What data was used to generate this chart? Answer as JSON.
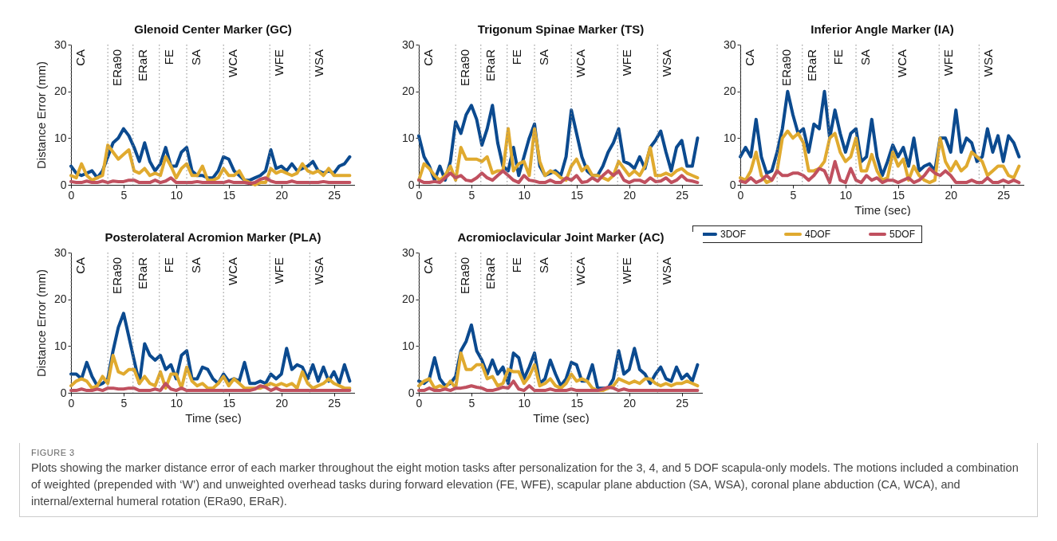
{
  "chart_data": [
    {
      "type": "line",
      "title": "Glenoid Center Marker (GC)",
      "ylabel": "Distance Error (mm)",
      "legend": "bottom right",
      "xlim": [
        0,
        27
      ],
      "xticks": [
        0,
        5,
        10,
        15,
        20,
        25
      ],
      "ylim": [
        0,
        30
      ],
      "yticks": [
        0,
        10,
        20,
        30
      ],
      "x": [
        0,
        0.5,
        1,
        1.5,
        2,
        2.5,
        3,
        3.5,
        4,
        4.5,
        5,
        5.5,
        6,
        6.5,
        7,
        7.5,
        8,
        8.5,
        9,
        9.5,
        10,
        10.5,
        11,
        11.5,
        12,
        12.5,
        13,
        13.5,
        14,
        14.5,
        15,
        15.5,
        16,
        16.5,
        17,
        17.5,
        18,
        18.5,
        19,
        19.5,
        20,
        20.5,
        21,
        21.5,
        22,
        22.5,
        23,
        23.5,
        24,
        24.5,
        25,
        25.5,
        26,
        26.5
      ],
      "series": [
        {
          "name": "3DOF",
          "color": "#0b4a8f",
          "values": [
            4,
            2.5,
            2,
            2.5,
            3,
            1.5,
            3,
            6,
            9,
            10,
            12,
            10.5,
            8,
            5,
            9,
            5,
            3,
            4.5,
            8,
            4,
            4,
            7,
            8,
            3,
            2,
            2,
            1.5,
            1.5,
            3,
            6,
            5.5,
            3,
            2,
            1,
            1,
            1.5,
            2,
            3,
            7.5,
            3.5,
            4,
            3,
            4.5,
            3,
            3.5,
            4,
            5,
            3,
            2.5,
            3,
            2.5,
            4,
            4.5,
            6
          ]
        },
        {
          "name": "4DOF",
          "color": "#e0aa2f",
          "values": [
            2,
            1.5,
            4.5,
            2,
            1,
            1.5,
            2,
            8.5,
            7,
            5.5,
            6.5,
            7.5,
            3,
            2.5,
            3.5,
            2,
            2.5,
            2,
            6,
            4,
            1.5,
            3.5,
            4.5,
            2,
            2,
            4,
            1,
            1,
            1.5,
            3.5,
            2,
            2,
            3,
            1,
            0.5,
            0,
            0.5,
            0.5,
            3.5,
            2.5,
            3,
            2.5,
            2,
            2.5,
            4.5,
            3,
            2.5,
            3,
            2,
            3.5,
            2,
            2,
            2,
            2
          ]
        },
        {
          "name": "5DOF",
          "color": "#c0505f",
          "values": [
            0.7,
            0.5,
            0.5,
            0.8,
            0.5,
            0.5,
            0.8,
            0.5,
            0.8,
            0.7,
            0.7,
            1,
            1,
            0.5,
            0.5,
            0.5,
            1,
            0.5,
            0.8,
            1.5,
            0.5,
            0.5,
            0.5,
            0.5,
            0.7,
            0.5,
            0.5,
            0.5,
            0.5,
            0.5,
            0.8,
            0.5,
            0.5,
            0.5,
            0.3,
            0.5,
            1.2,
            1.5,
            0.8,
            0.5,
            0.5,
            0.5,
            0.8,
            0.5,
            0.5,
            0.5,
            0.5,
            0.5,
            0.7,
            0.5,
            0.5,
            0.5,
            0.5,
            0.5
          ]
        }
      ],
      "ref_lines": [
        {
          "axis": "x",
          "value": 0,
          "label": "CA",
          "color": "#888888",
          "line_style": "dotted"
        },
        {
          "axis": "x",
          "value": 3.5,
          "label": "ERa90",
          "color": "#888888",
          "line_style": "dotted"
        },
        {
          "axis": "x",
          "value": 5.9,
          "label": "ERaR",
          "color": "#888888",
          "line_style": "dotted"
        },
        {
          "axis": "x",
          "value": 8.4,
          "label": "FE",
          "color": "#888888",
          "line_style": "dotted"
        },
        {
          "axis": "x",
          "value": 11,
          "label": "SA",
          "color": "#888888",
          "line_style": "dotted"
        },
        {
          "axis": "x",
          "value": 14.5,
          "label": "WCA",
          "color": "#888888",
          "line_style": "dotted"
        },
        {
          "axis": "x",
          "value": 18.9,
          "label": "WFE",
          "color": "#888888",
          "line_style": "dotted"
        },
        {
          "axis": "x",
          "value": 22.7,
          "label": "WSA",
          "color": "#888888",
          "line_style": "dotted"
        }
      ]
    },
    {
      "type": "line",
      "title": "Trigonum Spinae Marker (TS)",
      "xlim": [
        0,
        27
      ],
      "xticks": [
        0,
        5,
        10,
        15,
        20,
        25
      ],
      "ylim": [
        0,
        30
      ],
      "yticks": [
        0,
        10,
        20,
        30
      ],
      "x": [
        0,
        0.5,
        1,
        1.5,
        2,
        2.5,
        3,
        3.5,
        4,
        4.5,
        5,
        5.5,
        6,
        6.5,
        7,
        7.5,
        8,
        8.5,
        9,
        9.5,
        10,
        10.5,
        11,
        11.5,
        12,
        12.5,
        13,
        13.5,
        14,
        14.5,
        15,
        15.5,
        16,
        16.5,
        17,
        17.5,
        18,
        18.5,
        19,
        19.5,
        20,
        20.5,
        21,
        21.5,
        22,
        22.5,
        23,
        23.5,
        24,
        24.5,
        25,
        25.5,
        26,
        26.5
      ],
      "series": [
        {
          "color": "#0b4a8f",
          "values": [
            10.5,
            6,
            4,
            1,
            4,
            1,
            5,
            13.5,
            11,
            15,
            17,
            14,
            8.5,
            12,
            17,
            9,
            4,
            3,
            8,
            2,
            6,
            10,
            13,
            4,
            2,
            2.5,
            3,
            2,
            6,
            16,
            11,
            6,
            3,
            2,
            2,
            4,
            7,
            9,
            12,
            5,
            4.5,
            3.5,
            6,
            3.5,
            8,
            9.5,
            11.5,
            7,
            3,
            8,
            9.5,
            4,
            4,
            10
          ]
        },
        {
          "color": "#e0aa2f",
          "values": [
            1,
            4.5,
            3.5,
            2,
            1,
            2,
            4,
            1,
            8,
            5.5,
            5.5,
            5.5,
            5,
            6,
            2.5,
            3,
            3,
            12,
            3,
            4.5,
            5,
            2,
            12,
            5,
            2,
            3,
            2.5,
            1.5,
            1,
            4,
            5.5,
            3,
            4,
            2,
            2,
            1.5,
            1,
            2,
            5,
            3.5,
            2,
            3,
            2,
            4,
            8,
            2,
            2,
            2.5,
            2,
            3,
            3.5,
            2.5,
            2,
            1.5
          ]
        },
        {
          "color": "#c0505f",
          "values": [
            1,
            0.5,
            0.5,
            0.7,
            0.5,
            1.5,
            2.5,
            1.5,
            2,
            1,
            0.8,
            1.5,
            2.5,
            1.5,
            1,
            2,
            3,
            2,
            1,
            0.5,
            2,
            1,
            0.8,
            0.5,
            0.5,
            1,
            0.5,
            0.5,
            1.5,
            1,
            2,
            0.5,
            0.7,
            1.5,
            0.8,
            2,
            3,
            2,
            3,
            1,
            0.5,
            1,
            1,
            0.5,
            1.5,
            0.7,
            0.8,
            1.5,
            0.5,
            1,
            2,
            1,
            0.8,
            0.5
          ]
        }
      ],
      "ref_lines": [
        {
          "axis": "x",
          "value": 0,
          "label": "CA",
          "color": "#888888",
          "line_style": "dotted"
        },
        {
          "axis": "x",
          "value": 3.5,
          "label": "ERa90",
          "color": "#888888",
          "line_style": "dotted"
        },
        {
          "axis": "x",
          "value": 5.9,
          "label": "ERaR",
          "color": "#888888",
          "line_style": "dotted"
        },
        {
          "axis": "x",
          "value": 8.4,
          "label": "FE",
          "color": "#888888",
          "line_style": "dotted"
        },
        {
          "axis": "x",
          "value": 11,
          "label": "SA",
          "color": "#888888",
          "line_style": "dotted"
        },
        {
          "axis": "x",
          "value": 14.5,
          "label": "WCA",
          "color": "#888888",
          "line_style": "dotted"
        },
        {
          "axis": "x",
          "value": 18.9,
          "label": "WFE",
          "color": "#888888",
          "line_style": "dotted"
        },
        {
          "axis": "x",
          "value": 22.7,
          "label": "WSA",
          "color": "#888888",
          "line_style": "dotted"
        }
      ]
    },
    {
      "type": "line",
      "title": "Inferior Angle Marker (IA)",
      "xlabel": "Time (sec)",
      "xlim": [
        0,
        27
      ],
      "xticks": [
        0,
        5,
        10,
        15,
        20,
        25
      ],
      "ylim": [
        0,
        30
      ],
      "yticks": [
        0,
        10,
        20,
        30
      ],
      "x": [
        0,
        0.5,
        1,
        1.5,
        2,
        2.5,
        3,
        3.5,
        4,
        4.5,
        5,
        5.5,
        6,
        6.5,
        7,
        7.5,
        8,
        8.5,
        9,
        9.5,
        10,
        10.5,
        11,
        11.5,
        12,
        12.5,
        13,
        13.5,
        14,
        14.5,
        15,
        15.5,
        16,
        16.5,
        17,
        17.5,
        18,
        18.5,
        19,
        19.5,
        20,
        20.5,
        21,
        21.5,
        22,
        22.5,
        23,
        23.5,
        24,
        24.5,
        25,
        25.5,
        26,
        26.5
      ],
      "series": [
        {
          "color": "#0b4a8f",
          "values": [
            6,
            8,
            6,
            14,
            6,
            2.5,
            3,
            7,
            12,
            20,
            15,
            11,
            12,
            7,
            13,
            12,
            20,
            10,
            16,
            11,
            7,
            11,
            12,
            5,
            6,
            14,
            6,
            2,
            5,
            8.5,
            6,
            8,
            4,
            10,
            3,
            4,
            4.5,
            3,
            10,
            10,
            7,
            16,
            7,
            10,
            9,
            5,
            6,
            12,
            7,
            10.5,
            5,
            10.5,
            9,
            6
          ]
        },
        {
          "color": "#e0aa2f",
          "values": [
            1.5,
            1,
            3,
            7,
            2,
            0.5,
            1,
            3,
            10,
            11.5,
            10,
            11,
            9,
            3,
            3,
            3.5,
            5,
            10,
            11,
            7,
            5,
            6,
            10,
            3,
            3,
            6.5,
            3,
            1,
            1.5,
            7,
            4,
            5.5,
            1,
            4,
            2,
            1,
            0.5,
            1,
            10,
            5,
            3,
            5,
            3,
            4,
            7,
            6,
            5,
            2,
            3,
            4,
            4,
            2,
            1.5,
            4
          ]
        },
        {
          "color": "#c0505f",
          "values": [
            0.8,
            0.5,
            1.5,
            0.5,
            1,
            2,
            1,
            3,
            2,
            2,
            2.5,
            2.5,
            2,
            1,
            2,
            3.5,
            3,
            0.5,
            5,
            1,
            0.5,
            3.5,
            1,
            0.5,
            2,
            1,
            1.5,
            0.5,
            1,
            1,
            0.5,
            1,
            1.5,
            0.5,
            1,
            2,
            3.5,
            2.5,
            2,
            3,
            2,
            0.5,
            0.5,
            0.5,
            1,
            0.5,
            0.5,
            1.5,
            0.5,
            0.5,
            1,
            0.5,
            1,
            0.5
          ]
        }
      ],
      "ref_lines": [
        {
          "axis": "x",
          "value": 0,
          "label": "CA",
          "color": "#888888",
          "line_style": "dotted"
        },
        {
          "axis": "x",
          "value": 3.5,
          "label": "ERa90",
          "color": "#888888",
          "line_style": "dotted"
        },
        {
          "axis": "x",
          "value": 5.9,
          "label": "ERaR",
          "color": "#888888",
          "line_style": "dotted"
        },
        {
          "axis": "x",
          "value": 8.4,
          "label": "FE",
          "color": "#888888",
          "line_style": "dotted"
        },
        {
          "axis": "x",
          "value": 11,
          "label": "SA",
          "color": "#888888",
          "line_style": "dotted"
        },
        {
          "axis": "x",
          "value": 14.5,
          "label": "WCA",
          "color": "#888888",
          "line_style": "dotted"
        },
        {
          "axis": "x",
          "value": 18.9,
          "label": "WFE",
          "color": "#888888",
          "line_style": "dotted"
        },
        {
          "axis": "x",
          "value": 22.7,
          "label": "WSA",
          "color": "#888888",
          "line_style": "dotted"
        }
      ]
    },
    {
      "type": "line",
      "title": "Posterolateral Acromion Marker (PLA)",
      "xlabel": "Time (sec)",
      "ylabel": "Distance Error (mm)",
      "xlim": [
        0,
        27
      ],
      "xticks": [
        0,
        5,
        10,
        15,
        20,
        25
      ],
      "ylim": [
        0,
        30
      ],
      "yticks": [
        0,
        10,
        20,
        30
      ],
      "x": [
        0,
        0.5,
        1,
        1.5,
        2,
        2.5,
        3,
        3.5,
        4,
        4.5,
        5,
        5.5,
        6,
        6.5,
        7,
        7.5,
        8,
        8.5,
        9,
        9.5,
        10,
        10.5,
        11,
        11.5,
        12,
        12.5,
        13,
        13.5,
        14,
        14.5,
        15,
        15.5,
        16,
        16.5,
        17,
        17.5,
        18,
        18.5,
        19,
        19.5,
        20,
        20.5,
        21,
        21.5,
        22,
        22.5,
        23,
        23.5,
        24,
        24.5,
        25,
        25.5,
        26,
        26.5
      ],
      "series": [
        {
          "color": "#0b4a8f",
          "values": [
            4,
            4,
            3,
            6.5,
            3.5,
            1.5,
            2,
            3,
            9,
            14,
            17,
            12,
            7,
            2,
            10.5,
            8,
            7,
            8,
            5,
            6,
            3,
            8,
            9,
            3,
            3,
            5.5,
            5,
            3,
            2,
            4,
            2.5,
            3,
            2.5,
            6.5,
            2,
            2,
            2.5,
            2,
            4,
            3,
            4,
            9.5,
            5,
            6,
            5.5,
            3,
            6,
            2.5,
            5.5,
            2.5,
            4.5,
            2,
            6,
            2.5
          ]
        },
        {
          "color": "#e0aa2f",
          "values": [
            1.5,
            2.5,
            3,
            2.5,
            1,
            1.5,
            3.5,
            2,
            8,
            4.5,
            4,
            5,
            5,
            2,
            3.5,
            2,
            1.5,
            4.5,
            1,
            4,
            4,
            1,
            5.5,
            2.5,
            1.5,
            2,
            1,
            1,
            2,
            3.5,
            1.5,
            3,
            2,
            1,
            1,
            1,
            1,
            1.5,
            2,
            1.5,
            2,
            1.5,
            2,
            1,
            4.5,
            2,
            1,
            1.5,
            2,
            3,
            2,
            1.5,
            1,
            1
          ]
        },
        {
          "color": "#c0505f",
          "values": [
            0.5,
            0.5,
            0.8,
            0.5,
            0.5,
            0.8,
            0.5,
            1,
            1,
            0.8,
            0.8,
            1,
            1,
            0.5,
            0.5,
            0.5,
            0.8,
            0.5,
            2,
            0.8,
            0.5,
            1,
            0.5,
            0.5,
            0.5,
            0.5,
            0.5,
            0.5,
            0.5,
            0.5,
            0.5,
            0.5,
            0.5,
            0.5,
            0.5,
            0.8,
            1.5,
            1.2,
            0.5,
            1,
            0.5,
            0.5,
            0.5,
            0.5,
            0.5,
            0.5,
            0.5,
            0.5,
            0.5,
            0.5,
            0.5,
            0.5,
            0.5,
            0.5
          ]
        }
      ],
      "ref_lines": [
        {
          "axis": "x",
          "value": 0,
          "label": "CA",
          "color": "#888888",
          "line_style": "dotted"
        },
        {
          "axis": "x",
          "value": 3.5,
          "label": "ERa90",
          "color": "#888888",
          "line_style": "dotted"
        },
        {
          "axis": "x",
          "value": 5.9,
          "label": "ERaR",
          "color": "#888888",
          "line_style": "dotted"
        },
        {
          "axis": "x",
          "value": 8.4,
          "label": "FE",
          "color": "#888888",
          "line_style": "dotted"
        },
        {
          "axis": "x",
          "value": 11,
          "label": "SA",
          "color": "#888888",
          "line_style": "dotted"
        },
        {
          "axis": "x",
          "value": 14.5,
          "label": "WCA",
          "color": "#888888",
          "line_style": "dotted"
        },
        {
          "axis": "x",
          "value": 18.9,
          "label": "WFE",
          "color": "#888888",
          "line_style": "dotted"
        },
        {
          "axis": "x",
          "value": 22.7,
          "label": "WSA",
          "color": "#888888",
          "line_style": "dotted"
        }
      ]
    },
    {
      "type": "line",
      "title": "Acromioclavicular Joint Marker (AC)",
      "xlabel": "Time (sec)",
      "xlim": [
        0,
        27
      ],
      "xticks": [
        0,
        5,
        10,
        15,
        20,
        25
      ],
      "ylim": [
        0,
        30
      ],
      "yticks": [
        0,
        10,
        20,
        30
      ],
      "x": [
        0,
        0.5,
        1,
        1.5,
        2,
        2.5,
        3,
        3.5,
        4,
        4.5,
        5,
        5.5,
        6,
        6.5,
        7,
        7.5,
        8,
        8.5,
        9,
        9.5,
        10,
        10.5,
        11,
        11.5,
        12,
        12.5,
        13,
        13.5,
        14,
        14.5,
        15,
        15.5,
        16,
        16.5,
        17,
        17.5,
        18,
        18.5,
        19,
        19.5,
        20,
        20.5,
        21,
        21.5,
        22,
        22.5,
        23,
        23.5,
        24,
        24.5,
        25,
        25.5,
        26,
        26.5
      ],
      "series": [
        {
          "color": "#0b4a8f",
          "values": [
            2.5,
            2,
            3,
            7.5,
            3,
            1.5,
            2,
            3.5,
            9,
            11,
            14.5,
            9,
            7,
            4,
            7,
            4,
            5.5,
            2,
            8.5,
            7.5,
            3,
            5.5,
            8.5,
            2,
            3,
            7,
            4,
            1.5,
            3,
            6.5,
            6,
            2.5,
            2.5,
            6,
            1,
            1,
            1,
            3,
            9,
            4,
            5,
            9.5,
            5,
            4,
            2,
            4,
            5.5,
            3,
            2.5,
            5.5,
            3,
            4,
            2.5,
            6
          ]
        },
        {
          "color": "#e0aa2f",
          "values": [
            1.5,
            2.5,
            3,
            1,
            1.5,
            1,
            2.5,
            1,
            8.5,
            5,
            5,
            6,
            6,
            3,
            3.5,
            1.5,
            2,
            5,
            4.5,
            4.5,
            2,
            3.5,
            6,
            1.5,
            2,
            3,
            1.5,
            1,
            2,
            4,
            2.5,
            3,
            2.5,
            1,
            0.5,
            0.5,
            1,
            1.5,
            3,
            2.5,
            2,
            2.5,
            2,
            3,
            3,
            2,
            1.5,
            2,
            1.5,
            2,
            2,
            2.5,
            2,
            1.5
          ]
        },
        {
          "color": "#c0505f",
          "values": [
            0.5,
            0.5,
            1,
            0.5,
            0.5,
            0.8,
            0.5,
            1,
            1,
            1.2,
            1.5,
            1.2,
            1,
            0.5,
            0.5,
            0.8,
            1.2,
            1,
            2.5,
            0.8,
            0.5,
            1.5,
            0.5,
            0.5,
            0.5,
            0.8,
            0.5,
            0.5,
            0.5,
            0.8,
            0.5,
            0.5,
            0.5,
            0.5,
            0.5,
            0.8,
            1.2,
            1,
            0.5,
            0.8,
            0.5,
            0.5,
            0.5,
            0.5,
            0.5,
            0.5,
            0.5,
            0.5,
            0.5,
            0.5,
            0.5,
            0.5,
            0.5,
            0.5
          ]
        }
      ],
      "ref_lines": [
        {
          "axis": "x",
          "value": 0,
          "label": "CA",
          "color": "#888888",
          "line_style": "dotted"
        },
        {
          "axis": "x",
          "value": 3.5,
          "label": "ERa90",
          "color": "#888888",
          "line_style": "dotted"
        },
        {
          "axis": "x",
          "value": 5.9,
          "label": "ERaR",
          "color": "#888888",
          "line_style": "dotted"
        },
        {
          "axis": "x",
          "value": 8.4,
          "label": "FE",
          "color": "#888888",
          "line_style": "dotted"
        },
        {
          "axis": "x",
          "value": 11,
          "label": "SA",
          "color": "#888888",
          "line_style": "dotted"
        },
        {
          "axis": "x",
          "value": 14.5,
          "label": "WCA",
          "color": "#888888",
          "line_style": "dotted"
        },
        {
          "axis": "x",
          "value": 18.9,
          "label": "WFE",
          "color": "#888888",
          "line_style": "dotted"
        },
        {
          "axis": "x",
          "value": 22.7,
          "label": "WSA",
          "color": "#888888",
          "line_style": "dotted"
        }
      ],
      "annotations": [
        "FIGURE 3",
        "Plots showing the marker distance error of each marker throughout the eight motion tasks after personalization for the 3, 4, and 5 DOF scapula-only models. The motions included a combination of weighted (prepended with ‘W’) and unweighted overhead tasks during forward elevation (FE, WFE), scapular plane abduction (SA, WSA), coronal plane abduction (CA, WCA), and internal/external humeral rotation (ERa90, ERaR)."
      ]
    }
  ]
}
